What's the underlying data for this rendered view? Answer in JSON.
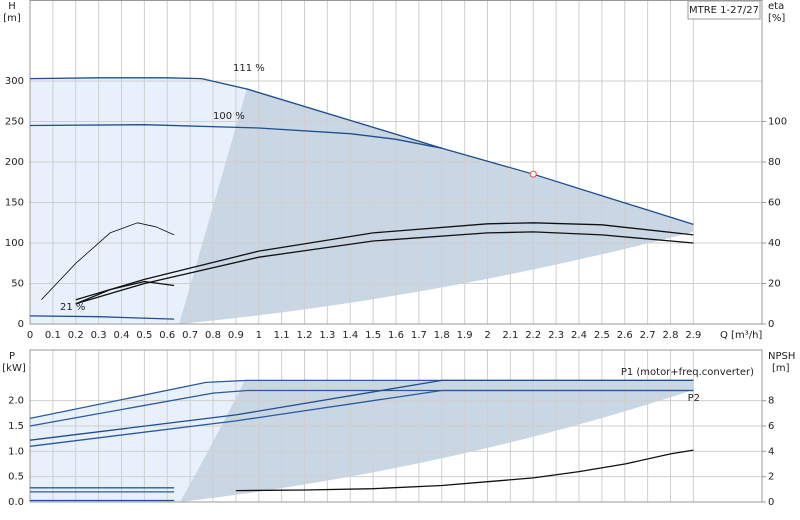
{
  "chart_data": [
    {
      "type": "line",
      "title": "MTRE 1-27/27",
      "x_label": "Q [m³/h]",
      "y_label": "H",
      "y_unit": "[m]",
      "y2_label": "eta",
      "y2_unit": "[%]",
      "xlim": [
        0,
        3.2
      ],
      "xticks": [
        0,
        0.1,
        0.2,
        0.3,
        0.4,
        0.5,
        0.6,
        0.7,
        0.8,
        0.9,
        1.0,
        1.1,
        1.2,
        1.3,
        1.4,
        1.5,
        1.6,
        1.7,
        1.8,
        1.9,
        2.0,
        2.1,
        2.2,
        2.3,
        2.4,
        2.5,
        2.6,
        2.7,
        2.8,
        2.9
      ],
      "ylim": [
        0,
        400
      ],
      "yticks": [
        0,
        50,
        100,
        150,
        200,
        250,
        300
      ],
      "y2lim": [
        0,
        160
      ],
      "y2ticks": [
        0,
        20,
        40,
        60,
        80,
        100
      ],
      "grid": true,
      "series": [
        {
          "name": "111 %",
          "color": "#1f4e8c",
          "x": [
            0,
            0.3,
            0.6,
            0.75,
            0.95,
            1.8,
            2.2,
            2.9
          ],
          "values": [
            303,
            304,
            304,
            303,
            290,
            217,
            185,
            123
          ]
        },
        {
          "name": "100 %",
          "color": "#1f4e8c",
          "x": [
            0,
            0.5,
            1.0,
            1.4,
            1.6,
            1.8
          ],
          "values": [
            245,
            246,
            242,
            235,
            228,
            217
          ]
        },
        {
          "name": "21 %",
          "color": "#1f4e8c",
          "x": [
            0,
            0.3,
            0.63
          ],
          "values": [
            10,
            9,
            6
          ]
        },
        {
          "color": "#111111",
          "axis": "y2",
          "x": [
            0.2,
            0.5,
            1.0,
            1.5,
            2.0,
            2.2,
            2.5,
            2.9
          ],
          "values": [
            12,
            22,
            36,
            45,
            49.5,
            50,
            49,
            44
          ]
        },
        {
          "color": "#111111",
          "axis": "y2",
          "x": [
            0.2,
            0.5,
            1.0,
            1.5,
            2.0,
            2.2,
            2.5,
            2.9
          ],
          "values": [
            10,
            20,
            33,
            41,
            45,
            45.5,
            44,
            40
          ]
        },
        {
          "color": "#111111",
          "axis": "y2",
          "x": [
            0.2,
            0.35,
            0.5,
            0.63
          ],
          "values": [
            10,
            17,
            21,
            19
          ]
        },
        {
          "color": "#111111",
          "axis": "y2",
          "x": [
            0.05,
            0.2,
            0.35,
            0.47,
            0.55,
            0.63
          ],
          "values": [
            12,
            30,
            45,
            50,
            48,
            44
          ]
        }
      ],
      "operating_point": {
        "x": 2.2,
        "y": 185,
        "color": "#e05050"
      }
    },
    {
      "type": "line",
      "y_label": "P",
      "y_unit": "[kW]",
      "y2_label": "NPSH",
      "y2_unit": "[m]",
      "xlim": [
        0,
        3.2
      ],
      "ylim": [
        0,
        3
      ],
      "yticks": [
        {
          "value": 0,
          "label": "0.0"
        },
        0.5,
        {
          "value": 1,
          "label": "1.0"
        },
        1.5,
        {
          "value": 2,
          "label": "2.0"
        }
      ],
      "y2lim": [
        0,
        12
      ],
      "y2ticks": [
        0,
        2,
        4,
        6,
        8
      ],
      "grid": true,
      "series": [
        {
          "name": "P1 (motor+freq.converter)",
          "color": "#2a5a9c",
          "x": [
            0,
            0.77,
            0.95,
            2.9
          ],
          "values": [
            1.65,
            2.36,
            2.4,
            2.4
          ]
        },
        {
          "name": "P2",
          "color": "#2a5a9c",
          "x": [
            0,
            0.8,
            0.95,
            2.9
          ],
          "values": [
            1.5,
            2.15,
            2.2,
            2.2
          ]
        },
        {
          "color": "#1f4e8c",
          "x": [
            0,
            0.9,
            1.8,
            2.9
          ],
          "values": [
            1.22,
            1.72,
            2.4,
            2.4
          ]
        },
        {
          "color": "#2a5a9c",
          "x": [
            0,
            0.9,
            1.8,
            2.9
          ],
          "values": [
            1.1,
            1.6,
            2.2,
            2.2
          ]
        },
        {
          "color": "#2a5a9c",
          "x": [
            0,
            0.63
          ],
          "values": [
            0.28,
            0.28
          ]
        },
        {
          "color": "#2a5a9c",
          "x": [
            0,
            0.63
          ],
          "values": [
            0.2,
            0.2
          ]
        },
        {
          "color": "#1f4e8c",
          "x": [
            0,
            0.63
          ],
          "values": [
            0.03,
            0.03
          ]
        },
        {
          "color": "#111111",
          "axis": "y2",
          "x": [
            0.9,
            1.2,
            1.5,
            1.8,
            2.0,
            2.2,
            2.4,
            2.6,
            2.8,
            2.9
          ],
          "values": [
            0.9,
            0.95,
            1.05,
            1.3,
            1.6,
            1.9,
            2.4,
            3.0,
            3.8,
            4.1
          ]
        }
      ]
    }
  ]
}
